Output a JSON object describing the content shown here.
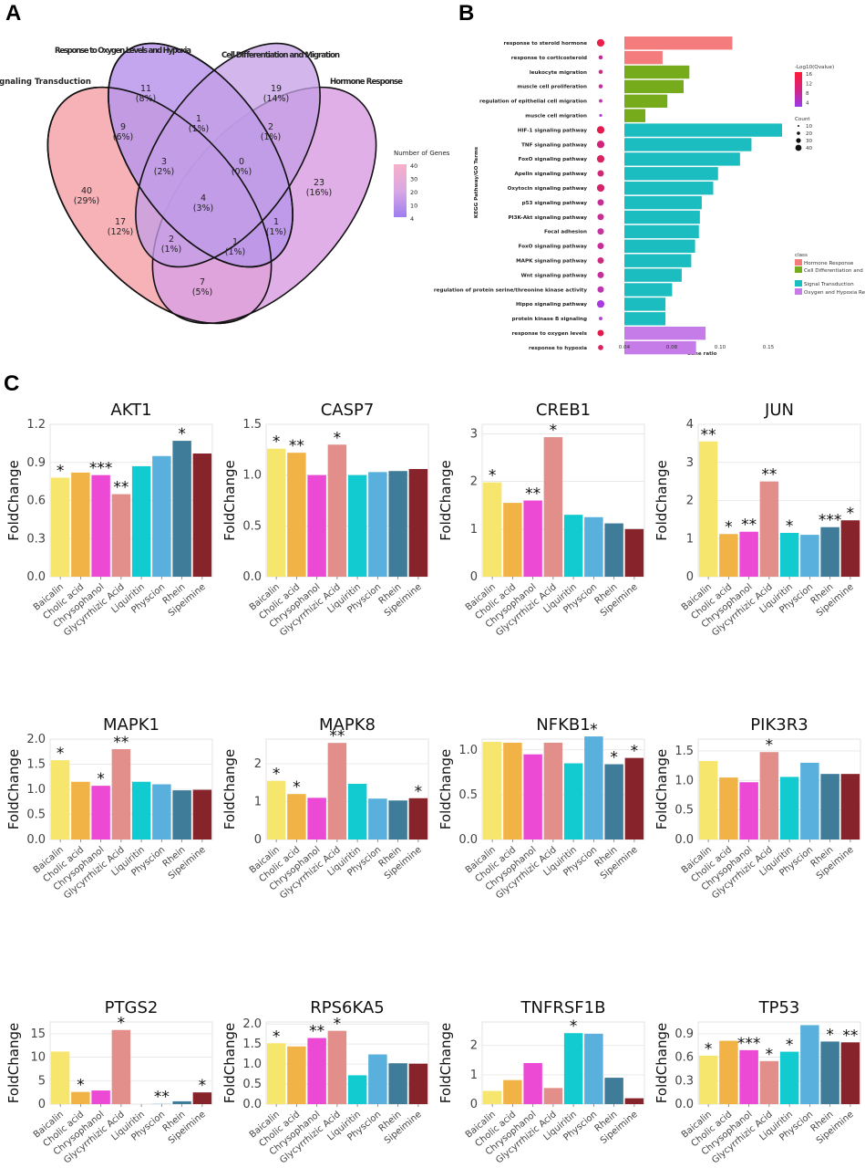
{
  "panels": {
    "a": "A",
    "b": "B",
    "c": "C"
  },
  "venn": {
    "sets": [
      "Signaling Transduction",
      "Response to Oxygen Levels and Hypoxia",
      "Cell Differentiation and Migration",
      "Hormone Response"
    ],
    "regions": [
      {
        "count": "40",
        "pct": "(29%)"
      },
      {
        "count": "11",
        "pct": "(8%)"
      },
      {
        "count": "19",
        "pct": "(14%)"
      },
      {
        "count": "23",
        "pct": "(16%)"
      },
      {
        "count": "9",
        "pct": "(6%)"
      },
      {
        "count": "1",
        "pct": "(1%)"
      },
      {
        "count": "2",
        "pct": "(1%)"
      },
      {
        "count": "3",
        "pct": "(2%)"
      },
      {
        "count": "0",
        "pct": "(0%)"
      },
      {
        "count": "17",
        "pct": "(12%)"
      },
      {
        "count": "4",
        "pct": "(3%)"
      },
      {
        "count": "1",
        "pct": "(1%)"
      },
      {
        "count": "2",
        "pct": "(1%)"
      },
      {
        "count": "1",
        "pct": "(1%)"
      },
      {
        "count": "7",
        "pct": "(5%)"
      }
    ],
    "legend_title": "Number of Genes",
    "legend_ticks": [
      "40",
      "30",
      "20",
      "10",
      "4"
    ],
    "colors": [
      "#f7b0b6",
      "#c9a0e8",
      "#b892e6",
      "#9a7ae8"
    ]
  },
  "kegg": {
    "ylabel": "KEGG Pathway/GO Terms",
    "xlabel": "Gene ratio",
    "xticks": [
      "0.04",
      "0.08",
      "0.10",
      "0.15"
    ],
    "terms": [
      "response to steroid hormone",
      "response to corticosteroid",
      "leukocyte migration",
      "muscle cell proliferation",
      "regulation of epithelial cell migration",
      "muscle cell migration",
      "HIF-1 signaling pathway",
      "TNF signaling pathway",
      "FoxO signaling pathway",
      "Apelin signaling pathway",
      "Oxytocin signaling pathway",
      "p53 signaling pathway",
      "PI3K-Akt signaling pathway",
      "Focal adhesion",
      "FoxO signaling pathway",
      "MAPK signaling pathway",
      "Wnt signaling pathway",
      "regulation of protein serine/threonine kinase activity",
      "Hippo signaling pathway",
      "protein kinase B signaling",
      "response to oxygen levels",
      "response to hypoxia"
    ],
    "values": [
      0.113,
      0.04,
      0.068,
      0.062,
      0.045,
      0.022,
      0.165,
      0.133,
      0.121,
      0.098,
      0.093,
      0.081,
      0.079,
      0.078,
      0.074,
      0.07,
      0.06,
      0.05,
      0.043,
      0.043,
      0.085,
      0.075
    ],
    "classes": [
      0,
      0,
      1,
      1,
      1,
      1,
      2,
      2,
      2,
      2,
      2,
      2,
      2,
      2,
      2,
      2,
      2,
      2,
      2,
      2,
      3,
      3
    ],
    "dot_colors": [
      "#e8204a",
      "#c62a9a",
      "#d02a80",
      "#c92e9e",
      "#c034b0",
      "#b23ed0",
      "#e31a4e",
      "#d2237a",
      "#d9235f",
      "#d12778",
      "#d6246a",
      "#c82e9a",
      "#c92c97",
      "#c9339f",
      "#c92c97",
      "#d02a80",
      "#c82e9a",
      "#c034b0",
      "#a83ae0",
      "#b23ed0",
      "#e31a4e",
      "#d9235f"
    ],
    "dot_sizes": [
      10,
      4,
      4,
      4,
      3,
      2,
      10,
      10,
      10,
      8,
      10,
      8,
      8,
      8,
      8,
      8,
      8,
      8,
      10,
      3,
      8,
      6
    ],
    "class_colors": [
      "#f47c7c",
      "#76ac1c",
      "#1bbdc0",
      "#c57be8"
    ],
    "legend_color_title": "-Log10(Qvalue)",
    "legend_color_ticks": [
      "16",
      "12",
      "8",
      "4"
    ],
    "legend_size_title": "Count",
    "legend_size_ticks": [
      "10",
      "20",
      "30",
      "40"
    ],
    "legend_class_title": "class",
    "legend_class_items": [
      "Hormone Response",
      "Cell Differentiation and Migration",
      "Signal Transduction",
      "Oxygen and Hypoxia Response"
    ]
  },
  "chart_data": {
    "type": "bar",
    "categories": [
      "Baicalin",
      "Cholic acid",
      "Chrysophanol",
      "Glycyrrhizic Acid",
      "Liquiritin",
      "Physcion",
      "Rhein",
      "Sipeimine"
    ],
    "ylabel": "FoldChange",
    "bar_colors": [
      "#f7e66e",
      "#f1b346",
      "#ec49d4",
      "#e28f8c",
      "#12cbd0",
      "#5ab0dc",
      "#3f7c99",
      "#87232a"
    ],
    "charts": [
      {
        "title": "AKT1",
        "ylim": [
          0,
          1.2
        ],
        "yticks": [
          "0.0",
          "0.3",
          "0.6",
          "0.9",
          "1.2"
        ],
        "values": [
          0.78,
          0.82,
          0.8,
          0.65,
          0.87,
          0.95,
          1.07,
          0.97
        ],
        "sig": [
          "*",
          "",
          "***",
          "**",
          "",
          "",
          "*",
          ""
        ]
      },
      {
        "title": "CASP7",
        "ylim": [
          0,
          1.5
        ],
        "yticks": [
          "0.0",
          "0.5",
          "1.0",
          "1.5"
        ],
        "values": [
          1.26,
          1.22,
          1.0,
          1.3,
          1.0,
          1.03,
          1.04,
          1.06
        ],
        "sig": [
          "*",
          "**",
          "",
          "*",
          "",
          "",
          "",
          ""
        ]
      },
      {
        "title": "CREB1",
        "ylim": [
          0,
          3.2
        ],
        "yticks": [
          "0",
          "1",
          "2",
          "3"
        ],
        "values": [
          1.98,
          1.55,
          1.6,
          2.93,
          1.3,
          1.25,
          1.12,
          1.0
        ],
        "sig": [
          "*",
          "",
          "**",
          "*",
          "",
          "",
          "",
          ""
        ]
      },
      {
        "title": "JUN",
        "ylim": [
          0,
          4.0
        ],
        "yticks": [
          "0",
          "1",
          "2",
          "3",
          "4"
        ],
        "values": [
          3.55,
          1.12,
          1.18,
          2.5,
          1.15,
          1.1,
          1.3,
          1.48
        ],
        "sig": [
          "**",
          "*",
          "**",
          "**",
          "*",
          "",
          "***",
          "*"
        ]
      },
      {
        "title": "MAPK1",
        "ylim": [
          0,
          2.0
        ],
        "yticks": [
          "0.0",
          "0.5",
          "1.0",
          "1.5",
          "2.0"
        ],
        "values": [
          1.58,
          1.15,
          1.07,
          1.8,
          1.15,
          1.1,
          0.98,
          0.99
        ],
        "sig": [
          "*",
          "",
          "*",
          "**",
          "",
          "",
          "",
          ""
        ]
      },
      {
        "title": "MAPK8",
        "ylim": [
          0,
          2.65
        ],
        "yticks": [
          "0",
          "1",
          "2"
        ],
        "values": [
          1.55,
          1.2,
          1.1,
          2.55,
          1.47,
          1.08,
          1.03,
          1.09
        ],
        "sig": [
          "*",
          "*",
          "",
          "**",
          "",
          "",
          "",
          "*"
        ]
      },
      {
        "title": "NFKB1",
        "ylim": [
          0,
          1.12
        ],
        "yticks": [
          "0.0",
          "0.5",
          "1.0"
        ],
        "values": [
          1.09,
          1.08,
          0.95,
          1.08,
          0.85,
          1.15,
          0.84,
          0.91
        ],
        "sig": [
          "",
          "",
          "",
          "",
          "",
          "*",
          "*",
          "*"
        ]
      },
      {
        "title": "PIK3R3",
        "ylim": [
          0,
          1.7
        ],
        "yticks": [
          "0.0",
          "0.5",
          "1.0",
          "1.5"
        ],
        "values": [
          1.33,
          1.05,
          0.97,
          1.48,
          1.06,
          1.3,
          1.11,
          1.11
        ],
        "sig": [
          "",
          "",
          "",
          "*",
          "",
          "",
          "",
          ""
        ]
      },
      {
        "title": "PTGS2",
        "ylim": [
          0,
          17.5
        ],
        "yticks": [
          "0",
          "5",
          "10",
          "15"
        ],
        "values": [
          11.2,
          2.6,
          2.9,
          15.8,
          0.0,
          0.05,
          0.6,
          2.5
        ],
        "sig": [
          "",
          "*",
          "",
          "*",
          "",
          "**",
          "",
          "*"
        ]
      },
      {
        "title": "RPS6KA5",
        "ylim": [
          0,
          2.05
        ],
        "yticks": [
          "0.0",
          "0.5",
          "1.0",
          "1.5",
          "2.0"
        ],
        "values": [
          1.52,
          1.44,
          1.65,
          1.83,
          0.72,
          1.24,
          1.02,
          1.01
        ],
        "sig": [
          "*",
          "",
          "**",
          "*",
          "",
          "",
          "",
          ""
        ]
      },
      {
        "title": "TNFRSF1B",
        "ylim": [
          0,
          2.8
        ],
        "yticks": [
          "0",
          "1",
          "2"
        ],
        "values": [
          0.45,
          0.82,
          1.4,
          0.55,
          2.42,
          2.4,
          0.9,
          0.2
        ],
        "sig": [
          "",
          "",
          "",
          "",
          "*",
          "",
          "",
          ""
        ]
      },
      {
        "title": "TP53",
        "ylim": [
          0,
          1.05
        ],
        "yticks": [
          "0.0",
          "0.3",
          "0.6",
          "0.9"
        ],
        "values": [
          0.62,
          0.81,
          0.69,
          0.55,
          0.67,
          1.01,
          0.8,
          0.79
        ],
        "sig": [
          "*",
          "",
          "***",
          "*",
          "*",
          "",
          "*",
          "**"
        ]
      }
    ]
  }
}
